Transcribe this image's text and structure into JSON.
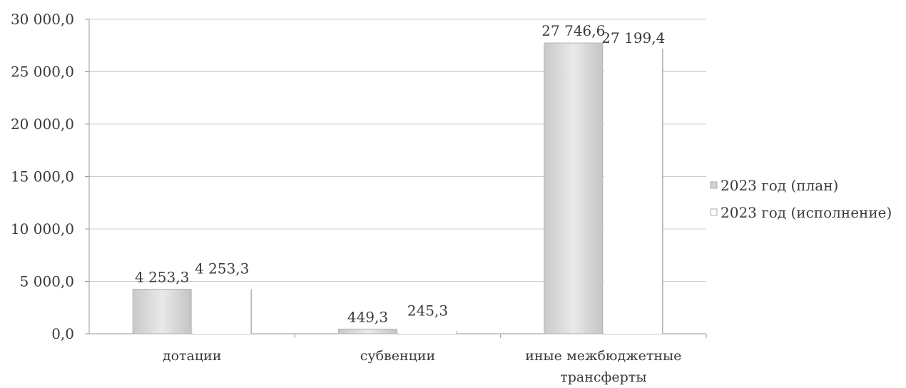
{
  "chart_data": {
    "type": "bar",
    "categories": [
      "дотации",
      "субвенции",
      "иные межбюджетные трансферты"
    ],
    "series": [
      {
        "name": "2023 год (план)",
        "values": [
          4253.3,
          449.3,
          27746.6
        ],
        "labels": [
          "4 253,3",
          "449,3",
          "27 746,6"
        ],
        "color": "#d9d9d9"
      },
      {
        "name": "2023 год (исполнение)",
        "values": [
          4253.3,
          245.3,
          27199.4
        ],
        "labels": [
          "4 253,3",
          "245,3",
          "27 199,4"
        ],
        "color": "#ffffff"
      }
    ],
    "ylim": [
      0,
      30000
    ],
    "y_ticks": [
      0,
      5000,
      10000,
      15000,
      20000,
      25000,
      30000
    ],
    "y_tick_labels": [
      "0,0",
      "5 000,0",
      "10 000,0",
      "15 000,0",
      "20 000,0",
      "25 000,0",
      "30 000,0"
    ],
    "grid": true,
    "legend_position": "right",
    "title": "",
    "xlabel": "",
    "ylabel": ""
  }
}
